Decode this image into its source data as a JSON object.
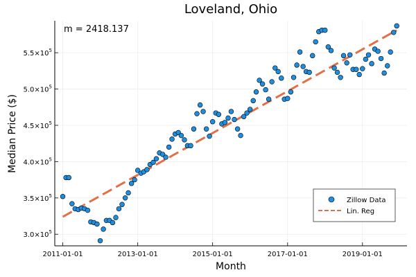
{
  "chart_data": {
    "type": "scatter",
    "title": "Loveland, Ohio",
    "xlabel": "Month",
    "ylabel": "Median Price ($)",
    "annotation": "m = 2418.137",
    "x_ticks": [
      "2011-01-01",
      "2013-01-01",
      "2015-01-01",
      "2017-01-01",
      "2019-01-01"
    ],
    "y_ticks": [
      {
        "value": 300000,
        "mantissa": "3.0",
        "exp": "5"
      },
      {
        "value": 350000,
        "mantissa": "3.5",
        "exp": "5"
      },
      {
        "value": 400000,
        "mantissa": "4.0",
        "exp": "5"
      },
      {
        "value": 450000,
        "mantissa": "4.5",
        "exp": "5"
      },
      {
        "value": 500000,
        "mantissa": "5.0",
        "exp": "5"
      },
      {
        "value": 550000,
        "mantissa": "5.5",
        "exp": "5"
      }
    ],
    "x_start": "2011-01-01",
    "xlim": [
      "2010-10-15",
      "2020-03-10"
    ],
    "ylim": [
      284000,
      594000
    ],
    "grid": true,
    "legend_position": "bottom-right",
    "colors": {
      "scatter": "#1e8fe0",
      "line": "#e26f46"
    },
    "series": [
      {
        "name": "Zillow Data",
        "type": "scatter",
        "values": [
          352000,
          378000,
          378000,
          342000,
          335000,
          334000,
          336000,
          335000,
          333000,
          317000,
          316000,
          314000,
          291000,
          307000,
          319000,
          319000,
          316000,
          323000,
          335000,
          341000,
          350000,
          357000,
          370000,
          375000,
          388000,
          384000,
          386000,
          389000,
          396000,
          399000,
          404000,
          412000,
          410000,
          406000,
          420000,
          431000,
          438000,
          440000,
          436000,
          430000,
          422000,
          422000,
          445000,
          466000,
          478000,
          469000,
          445000,
          435000,
          455000,
          467000,
          465000,
          452000,
          454000,
          460000,
          469000,
          458000,
          445000,
          436000,
          462000,
          467000,
          472000,
          484000,
          496000,
          512000,
          507000,
          499000,
          486000,
          510000,
          529000,
          524000,
          515000,
          486000,
          487000,
          496000,
          516000,
          533000,
          551000,
          531000,
          524000,
          523000,
          546000,
          565000,
          579000,
          581000,
          581000,
          558000,
          553000,
          529000,
          523000,
          516000,
          546000,
          536000,
          547000,
          527000,
          527000,
          520000,
          528000,
          541000,
          547000,
          535000,
          555000,
          552000,
          542000,
          522000,
          532000,
          551000,
          578000,
          587000
        ]
      },
      {
        "name": "Lin. Reg",
        "type": "line",
        "x_months": [
          0,
          107
        ],
        "values": [
          324000,
          581000
        ]
      }
    ]
  }
}
